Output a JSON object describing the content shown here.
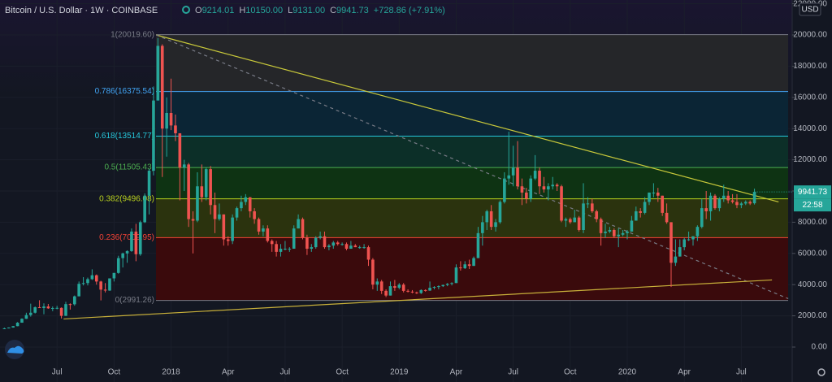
{
  "chart_data": {
    "type": "candlestick",
    "title": "Bitcoin / U.S. Dollar · 1W · COINBASE",
    "ohlc_labels": [
      "O",
      "H",
      "L",
      "C"
    ],
    "last_labels": [
      "9214.01",
      "10150.00",
      "9131.00",
      "9941.73"
    ],
    "change_label": "+728.86 (+7.91%)",
    "currency": "USD",
    "countdown": "22:58",
    "up_color": "#26a69a",
    "down_color": "#ef5350",
    "grid": true,
    "xlim": [
      -1,
      179.6
    ],
    "ylim": [
      -2240,
      22240
    ],
    "xticks": [
      {
        "value": 12,
        "label": "Jul"
      },
      {
        "value": 25,
        "label": "Oct"
      },
      {
        "value": 38,
        "label": "2018"
      },
      {
        "value": 51,
        "label": "Apr"
      },
      {
        "value": 64,
        "label": "Jul"
      },
      {
        "value": 77,
        "label": "Oct"
      },
      {
        "value": 90,
        "label": "2019"
      },
      {
        "value": 103,
        "label": "Apr"
      },
      {
        "value": 116,
        "label": "Jul"
      },
      {
        "value": 129,
        "label": "Oct"
      },
      {
        "value": 142,
        "label": "2020"
      },
      {
        "value": 155,
        "label": "Apr"
      },
      {
        "value": 168,
        "label": "Jul"
      }
    ],
    "yticks": [
      {
        "value": 0,
        "label": "0.00"
      },
      {
        "value": 2000,
        "label": "2000.00"
      },
      {
        "value": 4000,
        "label": "4000.00"
      },
      {
        "value": 6000,
        "label": "6000.00"
      },
      {
        "value": 8000,
        "label": "8000.00"
      },
      {
        "value": 10000,
        "label": "10000.00"
      },
      {
        "value": 12000,
        "label": "12000.00"
      },
      {
        "value": 14000,
        "label": "14000.00"
      },
      {
        "value": 16000,
        "label": "16000.00"
      },
      {
        "value": 18000,
        "label": "18000.00"
      },
      {
        "value": 20000,
        "label": "20000.00"
      },
      {
        "value": 22000,
        "label": "22000.00"
      }
    ],
    "fib": [
      {
        "label": "1(20019.60)",
        "value": 20019.6,
        "color": "#787b86",
        "fill": "#252629"
      },
      {
        "label": "0.786(16375.54)",
        "value": 16375.54,
        "color": "#42a5f5",
        "fill": "#0b2535"
      },
      {
        "label": "0.618(13514.77)",
        "value": 13514.77,
        "color": "#26c6da",
        "fill": "#0c2f28"
      },
      {
        "label": "0.5(11505.43)",
        "value": 11505.43,
        "color": "#4caf50",
        "fill": "#0e3313"
      },
      {
        "label": "0.382(9496.08)",
        "value": 9496.08,
        "color": "#b9d11f",
        "fill": "#2b330e"
      },
      {
        "label": "0.236(7009.95)",
        "value": 7009.95,
        "color": "#f44336",
        "fill": "#3a0a0c"
      },
      {
        "label": "0(2991.26)",
        "value": 2991.26,
        "color": "#787b86"
      }
    ],
    "trendlines": [
      {
        "color": "#c8c83a",
        "dash": false,
        "x": [
          34.6,
          176.5
        ],
        "y": [
          20000,
          9300
        ]
      },
      {
        "color": "#787b86",
        "dash": true,
        "x": [
          34.6,
          178.7
        ],
        "y": [
          20000,
          3100
        ]
      },
      {
        "color": "#c8b03a",
        "dash": false,
        "x": [
          13.5,
          175
        ],
        "y": [
          1800,
          4300
        ]
      }
    ],
    "ohlc": [
      [
        1180,
        1240,
        1150,
        1200
      ],
      [
        1200,
        1260,
        1190,
        1250
      ],
      [
        1250,
        1350,
        1240,
        1340
      ],
      [
        1340,
        1600,
        1330,
        1560
      ],
      [
        1560,
        1840,
        1560,
        1810
      ],
      [
        1810,
        2200,
        1800,
        2050
      ],
      [
        2050,
        2780,
        1950,
        2200
      ],
      [
        2200,
        2600,
        2150,
        2550
      ],
      [
        2550,
        3000,
        2500,
        2500
      ],
      [
        2500,
        2800,
        2100,
        2600
      ],
      [
        2600,
        2760,
        2450,
        2480
      ],
      [
        2480,
        2600,
        2300,
        2500
      ],
      [
        2500,
        2640,
        2420,
        2510
      ],
      [
        2510,
        2540,
        1830,
        2000
      ],
      [
        2000,
        2900,
        1990,
        2750
      ],
      [
        2750,
        2800,
        2400,
        2740
      ],
      [
        2740,
        3300,
        2650,
        3250
      ],
      [
        3250,
        4200,
        3250,
        4050
      ],
      [
        4050,
        4480,
        3950,
        4100
      ],
      [
        4100,
        4450,
        3950,
        4350
      ],
      [
        4350,
        4980,
        4300,
        4600
      ],
      [
        4600,
        4650,
        4000,
        4200
      ],
      [
        4200,
        4250,
        2990,
        3680
      ],
      [
        3680,
        4100,
        3500,
        3620
      ],
      [
        3620,
        4400,
        3600,
        4400
      ],
      [
        4400,
        4750,
        4200,
        4750
      ],
      [
        4750,
        5850,
        4700,
        5700
      ],
      [
        5700,
        6050,
        5100,
        6000
      ],
      [
        6000,
        6200,
        5400,
        6150
      ],
      [
        6150,
        7600,
        6100,
        7400
      ],
      [
        7400,
        7900,
        5500,
        5950
      ],
      [
        5950,
        8100,
        5850,
        8000
      ],
      [
        8000,
        9850,
        7950,
        9700
      ],
      [
        9700,
        11400,
        8500,
        11300
      ],
      [
        11300,
        16700,
        11000,
        15800
      ],
      [
        15800,
        19800,
        15800,
        19300
      ],
      [
        19300,
        19400,
        10900,
        14000
      ],
      [
        14000,
        16000,
        12200,
        15000
      ],
      [
        15000,
        17200,
        13900,
        14200
      ],
      [
        14200,
        14900,
        13200,
        13700
      ],
      [
        13700,
        13700,
        9400,
        11500
      ],
      [
        11500,
        12000,
        10000,
        11700
      ],
      [
        11700,
        11800,
        7700,
        8200
      ],
      [
        8200,
        8700,
        6000,
        8100
      ],
      [
        8100,
        11200,
        8000,
        10300
      ],
      [
        10300,
        11700,
        9300,
        9600
      ],
      [
        9600,
        11500,
        9400,
        11400
      ],
      [
        11400,
        11600,
        8500,
        9100
      ],
      [
        9100,
        9900,
        7300,
        8200
      ],
      [
        8200,
        9200,
        8100,
        8500
      ],
      [
        8500,
        8500,
        6500,
        6900
      ],
      [
        6900,
        7100,
        6500,
        6800
      ],
      [
        6800,
        8500,
        6600,
        8300
      ],
      [
        8300,
        9000,
        8100,
        8900
      ],
      [
        8900,
        9700,
        8700,
        9300
      ],
      [
        9300,
        9800,
        9100,
        9600
      ],
      [
        9600,
        9600,
        8300,
        8700
      ],
      [
        8700,
        8900,
        7900,
        8200
      ],
      [
        8200,
        8300,
        7200,
        7400
      ],
      [
        7400,
        7800,
        7100,
        7600
      ],
      [
        7600,
        7800,
        6700,
        6800
      ],
      [
        6800,
        6900,
        6100,
        6600
      ],
      [
        6600,
        6800,
        5800,
        6100
      ],
      [
        6100,
        6600,
        5800,
        6300
      ],
      [
        6300,
        6800,
        6200,
        6300
      ],
      [
        6300,
        6400,
        6100,
        6300
      ],
      [
        6300,
        7800,
        6300,
        7600
      ],
      [
        7600,
        8500,
        7600,
        8200
      ],
      [
        8200,
        8300,
        6900,
        7000
      ],
      [
        7000,
        7200,
        5900,
        6300
      ],
      [
        6300,
        6600,
        6100,
        6400
      ],
      [
        6400,
        7100,
        6300,
        7000
      ],
      [
        7000,
        7400,
        6900,
        7100
      ],
      [
        7100,
        7400,
        6300,
        6400
      ],
      [
        6400,
        6600,
        6200,
        6500
      ],
      [
        6500,
        6800,
        6300,
        6700
      ],
      [
        6700,
        6800,
        6500,
        6600
      ],
      [
        6600,
        6700,
        6500,
        6600
      ],
      [
        6600,
        6700,
        6200,
        6300
      ],
      [
        6300,
        6800,
        6300,
        6500
      ],
      [
        6500,
        6600,
        6400,
        6400
      ],
      [
        6400,
        6500,
        6300,
        6400
      ],
      [
        6400,
        6600,
        6300,
        6400
      ],
      [
        6400,
        6500,
        5200,
        5600
      ],
      [
        5600,
        5700,
        3700,
        4000
      ],
      [
        4000,
        4400,
        3600,
        4200
      ],
      [
        4200,
        4300,
        3400,
        3600
      ],
      [
        3600,
        3700,
        3200,
        3300
      ],
      [
        3300,
        4200,
        3300,
        3900
      ],
      [
        3900,
        4300,
        3600,
        3800
      ],
      [
        3800,
        4100,
        3700,
        4000
      ],
      [
        4000,
        4100,
        3500,
        3600
      ],
      [
        3600,
        3700,
        3500,
        3550
      ],
      [
        3550,
        3650,
        3450,
        3500
      ],
      [
        3500,
        3550,
        3400,
        3460
      ],
      [
        3460,
        3700,
        3400,
        3650
      ],
      [
        3650,
        3700,
        3550,
        3620
      ],
      [
        3620,
        4200,
        3600,
        3800
      ],
      [
        3800,
        3900,
        3700,
        3850
      ],
      [
        3850,
        3950,
        3700,
        3900
      ],
      [
        3900,
        4000,
        3850,
        3980
      ],
      [
        3980,
        4100,
        3900,
        4050
      ],
      [
        4050,
        4150,
        3950,
        4100
      ],
      [
        4100,
        5300,
        4100,
        5100
      ],
      [
        5100,
        5500,
        4900,
        5050
      ],
      [
        5050,
        5500,
        5000,
        5300
      ],
      [
        5300,
        5600,
        5000,
        5200
      ],
      [
        5200,
        5800,
        5200,
        5700
      ],
      [
        5700,
        7700,
        5700,
        7300
      ],
      [
        7300,
        8400,
        6500,
        8000
      ],
      [
        8000,
        8800,
        7500,
        8700
      ],
      [
        8700,
        9100,
        7500,
        7700
      ],
      [
        7700,
        8200,
        7400,
        8000
      ],
      [
        8000,
        9400,
        7900,
        9300
      ],
      [
        9300,
        11200,
        9200,
        10800
      ],
      [
        10800,
        13800,
        10400,
        11000
      ],
      [
        11000,
        12900,
        10300,
        11500
      ],
      [
        11500,
        13200,
        10100,
        10300
      ],
      [
        10300,
        10800,
        9100,
        9900
      ],
      [
        9900,
        10200,
        9200,
        9500
      ],
      [
        9500,
        11000,
        9300,
        10800
      ],
      [
        10800,
        12300,
        10700,
        11300
      ],
      [
        11300,
        11500,
        9800,
        10300
      ],
      [
        10300,
        10900,
        9900,
        10100
      ],
      [
        10100,
        10500,
        9400,
        10300
      ],
      [
        10300,
        10900,
        10100,
        10400
      ],
      [
        10400,
        10500,
        10000,
        10300
      ],
      [
        10300,
        10400,
        8000,
        8100
      ],
      [
        8100,
        8300,
        7700,
        8200
      ],
      [
        8200,
        8300,
        7900,
        8000
      ],
      [
        8000,
        8800,
        8000,
        8300
      ],
      [
        8300,
        8400,
        7400,
        7500
      ],
      [
        7500,
        10500,
        7300,
        9200
      ],
      [
        9200,
        9600,
        8900,
        9200
      ],
      [
        9200,
        9500,
        8600,
        8700
      ],
      [
        8700,
        8800,
        8000,
        8200
      ],
      [
        8200,
        8300,
        6500,
        7300
      ],
      [
        7300,
        7900,
        7000,
        7400
      ],
      [
        7400,
        7700,
        7300,
        7500
      ],
      [
        7500,
        7600,
        7000,
        7100
      ],
      [
        7100,
        7600,
        6400,
        7200
      ],
      [
        7200,
        7500,
        7100,
        7300
      ],
      [
        7300,
        7500,
        6900,
        7400
      ],
      [
        7400,
        8400,
        7400,
        8100
      ],
      [
        8100,
        9000,
        8100,
        8700
      ],
      [
        8700,
        8900,
        8300,
        8600
      ],
      [
        8600,
        9600,
        8500,
        9300
      ],
      [
        9300,
        9900,
        9100,
        9900
      ],
      [
        9900,
        10500,
        9600,
        9900
      ],
      [
        9900,
        10200,
        9300,
        9700
      ],
      [
        9700,
        9700,
        8400,
        8600
      ],
      [
        8600,
        9200,
        7900,
        8000
      ],
      [
        8000,
        8000,
        3850,
        5400
      ],
      [
        5400,
        6900,
        5200,
        5800
      ],
      [
        5800,
        6900,
        5800,
        6400
      ],
      [
        6400,
        7000,
        6200,
        6900
      ],
      [
        6900,
        7400,
        6800,
        6900
      ],
      [
        6900,
        7100,
        6500,
        7100
      ],
      [
        7100,
        7800,
        6800,
        7700
      ],
      [
        7700,
        9500,
        7600,
        8900
      ],
      [
        8900,
        10000,
        8200,
        8700
      ],
      [
        8700,
        9900,
        8100,
        9700
      ],
      [
        9700,
        9800,
        8800,
        8900
      ],
      [
        8900,
        9600,
        8700,
        9500
      ],
      [
        9500,
        10400,
        9300,
        9700
      ],
      [
        9700,
        10000,
        9200,
        9400
      ],
      [
        9400,
        9800,
        9200,
        9300
      ],
      [
        9300,
        9800,
        8900,
        9100
      ],
      [
        9100,
        9300,
        8900,
        9200
      ],
      [
        9200,
        9400,
        9100,
        9300
      ],
      [
        9300,
        9400,
        9100,
        9200
      ],
      [
        9214.01,
        10150,
        9131,
        9941.73
      ]
    ]
  }
}
